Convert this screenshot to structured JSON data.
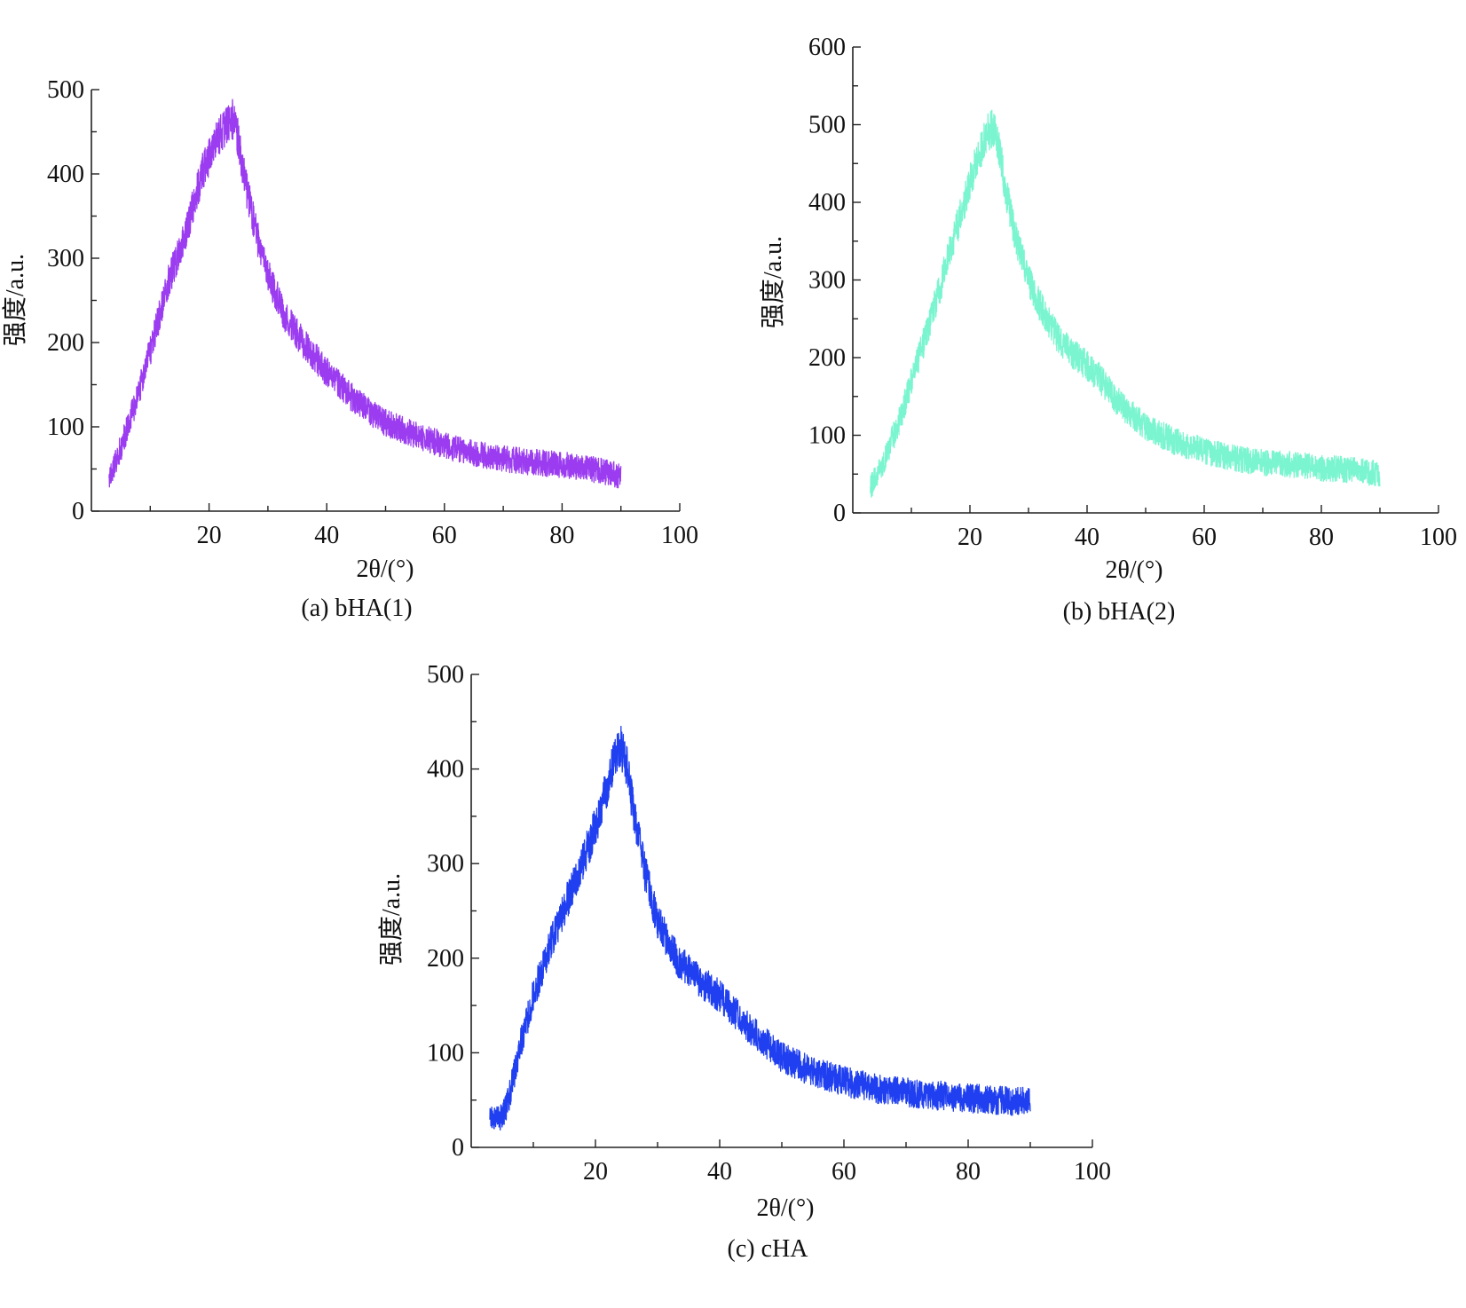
{
  "chart_data": [
    {
      "id": "a",
      "type": "line",
      "caption": "(a) bHA(1)",
      "xlabel": "2θ/(°)",
      "ylabel": "强度/a.u.",
      "xlim": [
        0,
        100
      ],
      "ylim": [
        0,
        500
      ],
      "xticks": [
        20,
        40,
        60,
        80,
        100
      ],
      "yticks": [
        0,
        100,
        200,
        300,
        400,
        500
      ],
      "x_minor_step": 10,
      "y_minor_step": 50,
      "color": "#9b3cf0",
      "series": [
        {
          "name": "bHA(1)",
          "x": [
            3,
            5,
            8,
            10,
            13,
            16,
            19,
            21,
            23,
            24,
            25,
            26,
            28,
            30,
            33,
            36,
            40,
            45,
            50,
            55,
            60,
            65,
            70,
            75,
            80,
            85,
            90
          ],
          "y": [
            38,
            75,
            140,
            190,
            270,
            330,
            405,
            435,
            460,
            465,
            440,
            395,
            330,
            280,
            230,
            200,
            165,
            130,
            105,
            90,
            78,
            68,
            62,
            58,
            55,
            50,
            42
          ],
          "noise_amplitude": 18
        }
      ]
    },
    {
      "id": "b",
      "type": "line",
      "caption": "(b) bHA(2)",
      "xlabel": "2θ/(°)",
      "ylabel": "强度/a.u.",
      "xlim": [
        0,
        100
      ],
      "ylim": [
        0,
        600
      ],
      "xticks": [
        20,
        40,
        60,
        80,
        100
      ],
      "yticks": [
        0,
        100,
        200,
        300,
        400,
        500,
        600
      ],
      "x_minor_step": 10,
      "y_minor_step": 50,
      "color": "#7af5cf",
      "series": [
        {
          "name": "bHA(2)",
          "x": [
            3,
            5,
            8,
            10,
            13,
            16,
            19,
            21,
            23,
            24,
            25,
            26,
            28,
            30,
            33,
            36,
            40,
            42,
            45,
            50,
            55,
            60,
            65,
            70,
            75,
            80,
            85,
            90
          ],
          "y": [
            32,
            60,
            120,
            170,
            240,
            320,
            400,
            450,
            490,
            495,
            470,
            420,
            350,
            300,
            250,
            215,
            190,
            175,
            145,
            110,
            92,
            80,
            70,
            65,
            62,
            58,
            55,
            50
          ],
          "noise_amplitude": 20
        }
      ]
    },
    {
      "id": "c",
      "type": "line",
      "caption": "(c) cHA",
      "xlabel": "2θ/(°)",
      "ylabel": "强度/a.u.",
      "xlim": [
        0,
        100
      ],
      "ylim": [
        0,
        500
      ],
      "xticks": [
        20,
        40,
        60,
        80,
        100
      ],
      "yticks": [
        0,
        100,
        200,
        300,
        400,
        500
      ],
      "x_minor_step": 10,
      "y_minor_step": 50,
      "color": "#1f3ff0",
      "series": [
        {
          "name": "cHA",
          "x": [
            3,
            5,
            6,
            8,
            10,
            13,
            16,
            19,
            21,
            23,
            24,
            25,
            26,
            28,
            30,
            33,
            36,
            40,
            45,
            50,
            55,
            60,
            65,
            70,
            75,
            80,
            85,
            90
          ],
          "y": [
            28,
            32,
            50,
            110,
            160,
            220,
            270,
            320,
            360,
            410,
            425,
            405,
            360,
            290,
            240,
            200,
            180,
            160,
            125,
            95,
            80,
            70,
            62,
            58,
            55,
            52,
            50,
            48
          ],
          "noise_amplitude": 18
        }
      ]
    }
  ]
}
